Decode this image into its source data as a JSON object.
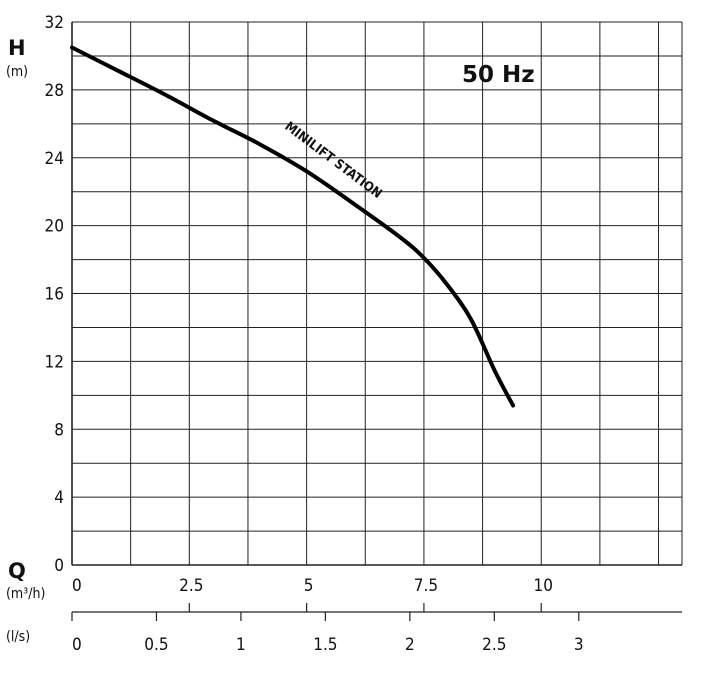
{
  "chart_data": {
    "type": "line",
    "title": "",
    "frequency_label": "50 Hz",
    "series": [
      {
        "name": "MINILIFT STATION",
        "x_m3h": [
          0,
          1,
          2,
          3,
          4,
          5,
          6,
          7,
          7.5,
          8,
          8.5,
          9,
          9.4
        ],
        "y_m": [
          30.5,
          29.1,
          27.7,
          26.2,
          24.8,
          23.2,
          21.3,
          19.3,
          18.1,
          16.5,
          14.5,
          11.5,
          9.4
        ]
      }
    ],
    "y_axis": {
      "label": "H",
      "unit": "(m)",
      "ylim": [
        0,
        32
      ],
      "major_ticks": [
        "0",
        "4",
        "8",
        "12",
        "16",
        "20",
        "24",
        "28",
        "32"
      ]
    },
    "x_axis_primary": {
      "label": "Q",
      "unit": "(m³/h)",
      "xlim": [
        0,
        13
      ],
      "ticks": [
        "0",
        "2.5",
        "5",
        "7.5",
        "10"
      ]
    },
    "x_axis_secondary": {
      "unit": "(l/s)",
      "ticks": [
        "0",
        "0.5",
        "1",
        "1.5",
        "2",
        "2.5",
        "3"
      ]
    },
    "grid": true
  }
}
